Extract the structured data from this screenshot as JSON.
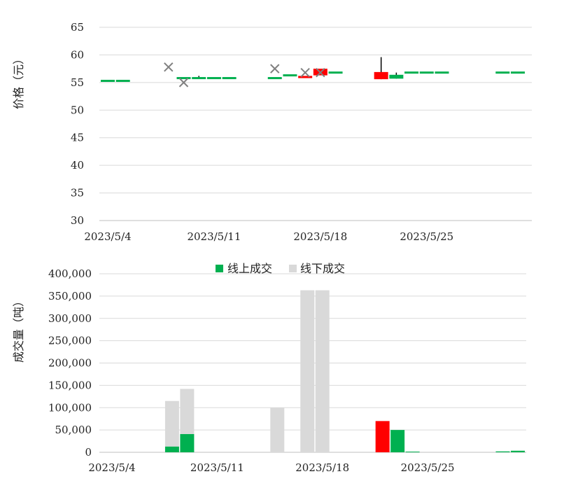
{
  "chart_data": [
    {
      "type": "candlestick",
      "ylabel": "价格（元）",
      "ylim": [
        30,
        65
      ],
      "yticks": [
        30,
        35,
        40,
        45,
        50,
        55,
        60,
        65
      ],
      "xlim": [
        "2023-05-04",
        "2023-05-31"
      ],
      "xticks": [
        "2023/5/4",
        "2023/5/11",
        "2023/5/18",
        "2023/5/25"
      ],
      "xtick_dates": [
        "2023-05-04",
        "2023-05-11",
        "2023-05-18",
        "2023-05-25"
      ],
      "grid": true,
      "candles": [
        {
          "date": "2023-05-04",
          "open": 55.3,
          "close": 55.3,
          "high": 55.3,
          "low": 55.3,
          "color": "#00b050"
        },
        {
          "date": "2023-05-05",
          "open": 55.3,
          "close": 55.3,
          "high": 55.3,
          "low": 55.3,
          "color": "#00b050"
        },
        {
          "date": "2023-05-09",
          "open": 55.8,
          "close": 55.8,
          "high": 55.8,
          "low": 55.8,
          "color": "#00b050"
        },
        {
          "date": "2023-05-10",
          "open": 55.8,
          "close": 55.8,
          "high": 56.2,
          "low": 55.8,
          "color": "#00b050"
        },
        {
          "date": "2023-05-11",
          "open": 55.8,
          "close": 55.8,
          "high": 55.8,
          "low": 55.8,
          "color": "#00b050"
        },
        {
          "date": "2023-05-12",
          "open": 55.8,
          "close": 55.8,
          "high": 55.8,
          "low": 55.8,
          "color": "#00b050"
        },
        {
          "date": "2023-05-15",
          "open": 55.8,
          "close": 55.8,
          "high": 55.8,
          "low": 55.8,
          "color": "#00b050"
        },
        {
          "date": "2023-05-16",
          "open": 56.3,
          "close": 56.3,
          "high": 56.3,
          "low": 56.3,
          "color": "#00b050"
        },
        {
          "date": "2023-05-17",
          "open": 55.8,
          "close": 56.2,
          "high": 56.2,
          "low": 55.8,
          "color": "#ff0000"
        },
        {
          "date": "2023-05-18",
          "open": 56.3,
          "close": 57.5,
          "high": 57.5,
          "low": 56.3,
          "color": "#ff0000"
        },
        {
          "date": "2023-05-19",
          "open": 56.8,
          "close": 56.8,
          "high": 56.8,
          "low": 56.8,
          "color": "#00b050"
        },
        {
          "date": "2023-05-22",
          "open": 55.6,
          "close": 56.9,
          "high": 59.6,
          "low": 55.6,
          "color": "#ff0000"
        },
        {
          "date": "2023-05-23",
          "open": 56.4,
          "close": 55.7,
          "high": 56.8,
          "low": 55.7,
          "color": "#00b050"
        },
        {
          "date": "2023-05-24",
          "open": 56.8,
          "close": 56.8,
          "high": 56.8,
          "low": 56.8,
          "color": "#00b050"
        },
        {
          "date": "2023-05-25",
          "open": 56.8,
          "close": 56.8,
          "high": 56.8,
          "low": 56.8,
          "color": "#00b050"
        },
        {
          "date": "2023-05-26",
          "open": 56.8,
          "close": 56.8,
          "high": 56.8,
          "low": 56.8,
          "color": "#00b050"
        },
        {
          "date": "2023-05-30",
          "open": 56.8,
          "close": 56.8,
          "high": 56.8,
          "low": 56.8,
          "color": "#00b050"
        },
        {
          "date": "2023-05-31",
          "open": 56.8,
          "close": 56.8,
          "high": 56.8,
          "low": 56.8,
          "color": "#00b050"
        }
      ],
      "markers": [
        {
          "date": "2023-05-08",
          "value": 57.8
        },
        {
          "date": "2023-05-09",
          "value": 55.0
        },
        {
          "date": "2023-05-15",
          "value": 57.5
        },
        {
          "date": "2023-05-17",
          "value": 56.8
        },
        {
          "date": "2023-05-18",
          "value": 56.8
        }
      ],
      "marker_color": "#808080"
    },
    {
      "type": "bar",
      "ylabel": "成交量（吨）",
      "ylim": [
        0,
        400000
      ],
      "yticks": [
        "0",
        "50,000",
        "100,000",
        "150,000",
        "200,000",
        "250,000",
        "300,000",
        "350,000",
        "400,000"
      ],
      "ytick_values": [
        0,
        50000,
        100000,
        150000,
        200000,
        250000,
        300000,
        350000,
        400000
      ],
      "xlim": [
        "2023-05-04",
        "2023-05-31"
      ],
      "xticks": [
        "2023/5/4",
        "2023/5/11",
        "2023/5/18",
        "2023/5/25"
      ],
      "xtick_dates": [
        "2023-05-04",
        "2023-05-11",
        "2023-05-18",
        "2023-05-25"
      ],
      "grid": true,
      "legend_position": "top",
      "series": [
        {
          "name": "线上成交",
          "color": "#00b050",
          "points": [
            {
              "date": "2023-05-08",
              "value": 13000
            },
            {
              "date": "2023-05-09",
              "value": 41000
            },
            {
              "date": "2023-05-22",
              "value": 70000,
              "color": "#ff0000"
            },
            {
              "date": "2023-05-23",
              "value": 50000
            },
            {
              "date": "2023-05-24",
              "value": 1500
            },
            {
              "date": "2023-05-30",
              "value": 2000
            },
            {
              "date": "2023-05-31",
              "value": 3500
            }
          ]
        },
        {
          "name": "线下成交",
          "color": "#d9d9d9",
          "points": [
            {
              "date": "2023-05-08",
              "value": 102000
            },
            {
              "date": "2023-05-09",
              "value": 101000
            },
            {
              "date": "2023-05-15",
              "value": 100000
            },
            {
              "date": "2023-05-17",
              "value": 363000
            },
            {
              "date": "2023-05-18",
              "value": 363000
            }
          ]
        }
      ]
    }
  ]
}
